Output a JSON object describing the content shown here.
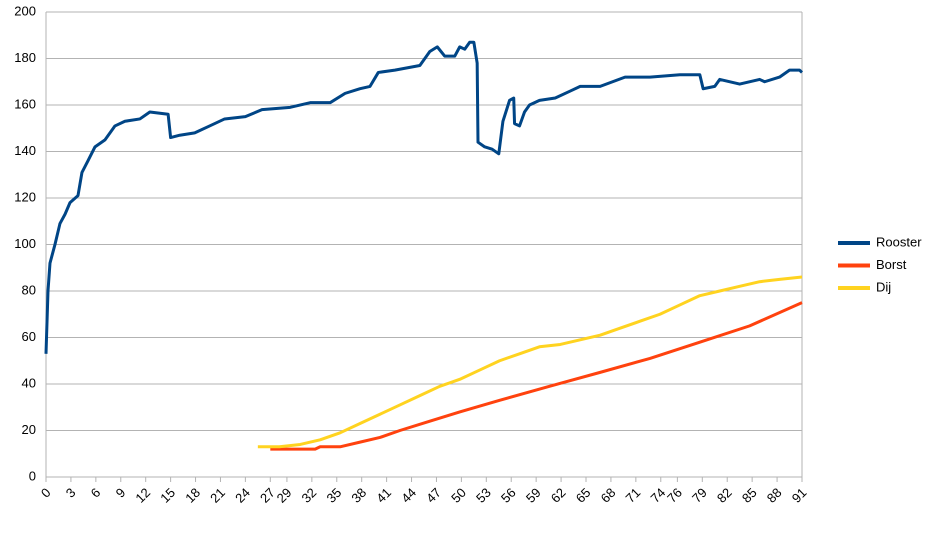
{
  "chart_data": {
    "type": "line",
    "xlim": [
      0,
      91
    ],
    "xticks": [
      0,
      3,
      6,
      9,
      12,
      15,
      18,
      21,
      24,
      27,
      29,
      32,
      35,
      38,
      41,
      44,
      47,
      50,
      53,
      56,
      59,
      62,
      65,
      68,
      71,
      74,
      76,
      79,
      82,
      85,
      88,
      91
    ],
    "ylim": [
      0,
      200
    ],
    "yticks": [
      0,
      20,
      40,
      60,
      80,
      100,
      120,
      140,
      160,
      180,
      200
    ],
    "grid": true,
    "legend": "right",
    "series": [
      {
        "name": "Rooster",
        "color": "#004586",
        "x": [
          0,
          0.24,
          0.48,
          1.08,
          1.68,
          2.29,
          2.89,
          3.85,
          4.33,
          5.05,
          5.9,
          7.1,
          8.3,
          9.5,
          11.3,
          12.5,
          14.7,
          15.0,
          16.1,
          17.9,
          19.7,
          21.5,
          24.0,
          26.0,
          29.4,
          31.8,
          34.2,
          36.0,
          37.8,
          39.0,
          40.0,
          42.0,
          45.0,
          46.2,
          47.1,
          48.0,
          49.2,
          49.8,
          50.4,
          51.0,
          51.5,
          51.9,
          52.0,
          52.8,
          53.7,
          54.5,
          55.0,
          55.8,
          56.3,
          56.4,
          57.0,
          57.6,
          58.2,
          59.4,
          61.3,
          63.1,
          64.3,
          66.7,
          69.7,
          72.7,
          76.3,
          78.7,
          79.1,
          80.5,
          81.1,
          83.5,
          85.9,
          86.5,
          88.3,
          89.5,
          90.7,
          91.0
        ],
        "values": [
          53,
          80,
          92,
          100,
          109,
          113,
          118,
          121,
          131,
          136,
          142,
          145,
          151,
          153,
          154,
          157,
          156,
          146,
          147,
          148,
          151,
          154,
          155,
          158,
          159,
          161,
          161,
          165,
          167,
          168,
          174,
          175,
          177,
          183,
          185,
          181,
          181,
          185,
          184,
          187,
          187,
          178,
          144,
          142,
          141,
          139,
          153,
          162,
          163,
          152,
          151,
          157,
          160,
          162,
          163,
          166,
          168,
          168,
          172,
          172,
          173,
          173,
          167,
          168,
          171,
          169,
          171,
          170,
          172,
          175,
          175,
          174
        ]
      },
      {
        "name": "Borst",
        "color": "#ff420e",
        "x": [
          27.0,
          32.4,
          33.0,
          35.4,
          37.8,
          40.2,
          42.6,
          46.2,
          49.8,
          54.6,
          60.6,
          66.7,
          72.7,
          78.7,
          84.7,
          91.0
        ],
        "values": [
          12,
          12,
          13,
          13,
          15,
          17,
          20,
          24,
          28,
          33,
          39,
          45,
          51,
          58,
          65,
          75
        ]
      },
      {
        "name": "Dij",
        "color": "#ffd320",
        "x": [
          25.5,
          28.1,
          30.6,
          33.0,
          35.4,
          37.8,
          40.2,
          42.6,
          45.0,
          47.4,
          49.8,
          52.2,
          54.6,
          57.0,
          59.4,
          61.9,
          64.3,
          66.7,
          69.1,
          71.5,
          73.9,
          76.3,
          78.7,
          81.1,
          83.5,
          85.9,
          88.3,
          91.0
        ],
        "values": [
          13,
          13,
          14,
          16,
          19,
          23,
          27,
          31,
          35,
          39,
          42,
          46,
          50,
          53,
          56,
          57,
          59,
          61,
          64,
          67,
          70,
          74,
          78,
          80,
          82,
          84,
          85,
          86
        ]
      }
    ]
  }
}
